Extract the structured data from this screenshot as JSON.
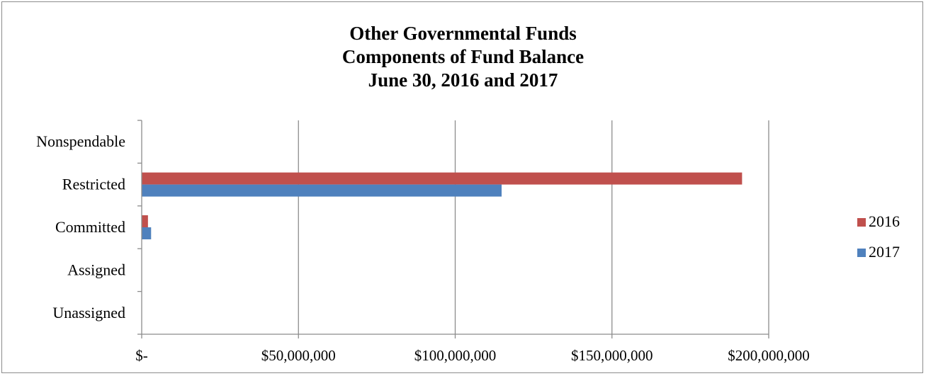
{
  "chart_data": {
    "type": "bar",
    "orientation": "horizontal",
    "title_lines": [
      "Other Governmental Funds",
      "Components of Fund Balance",
      "June 30, 2016 and 2017"
    ],
    "categories": [
      "Nonspendable",
      "Restricted",
      "Committed",
      "Assigned",
      "Unassigned"
    ],
    "series": [
      {
        "name": "2016",
        "color": "#c0504d",
        "values": [
          0,
          191500000,
          2000000,
          0,
          0
        ]
      },
      {
        "name": "2017",
        "color": "#4f81bd",
        "values": [
          0,
          114800000,
          3000000,
          0,
          0
        ]
      }
    ],
    "x_ticks": [
      0,
      50000000,
      100000000,
      150000000,
      200000000
    ],
    "x_tick_labels": [
      "$-",
      "$50,000,000",
      "$100,000,000",
      "$150,000,000",
      "$200,000,000"
    ],
    "xlim": [
      0,
      200000000
    ],
    "grid": true,
    "legend_position": "right",
    "xlabel": "",
    "ylabel": ""
  }
}
